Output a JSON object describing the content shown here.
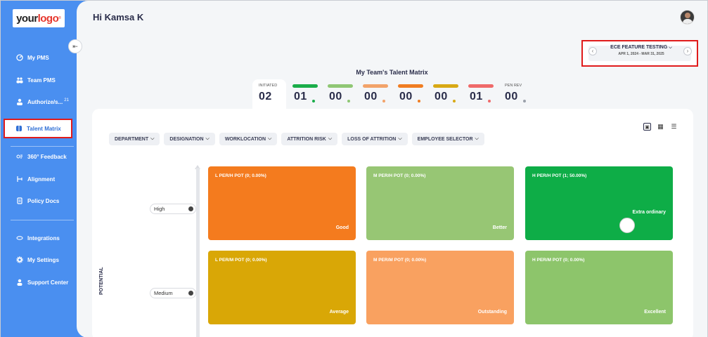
{
  "brand": {
    "logo_text_1": "your",
    "logo_text_2": "logo",
    "logo_mark": "®"
  },
  "sidebar": {
    "items": [
      {
        "label": "My PMS",
        "icon": "gauge-icon"
      },
      {
        "label": "Team PMS",
        "icon": "team-icon"
      },
      {
        "label": "Authorize/s...",
        "badge": "21",
        "icon": "user-check-icon"
      },
      {
        "label": "Talent Matrix",
        "icon": "matrix-icon",
        "active": true
      },
      {
        "label": "360° Feedback",
        "icon": "feedback-icon"
      },
      {
        "label": "Alignment",
        "icon": "alignment-icon"
      },
      {
        "label": "Policy Docs",
        "icon": "document-icon"
      },
      {
        "label": "Integrations",
        "icon": "link-icon"
      },
      {
        "label": "My Settings",
        "icon": "gear-icon"
      },
      {
        "label": "Support Center",
        "icon": "support-icon"
      }
    ]
  },
  "header": {
    "greeting": "Hi Kamsa K"
  },
  "cycle": {
    "name": "ECE FEATURE TESTING",
    "range": "APR 1, 2024 - MAR 31, 2025"
  },
  "matrix": {
    "title": "My Team's Talent Matrix",
    "stages": [
      {
        "label": "INITIATED",
        "count": "02",
        "color": "",
        "selected": true
      },
      {
        "label": "",
        "count": "01",
        "color": "#1aad4a"
      },
      {
        "label": "",
        "count": "00",
        "color": "#8fc774"
      },
      {
        "label": "",
        "count": "00",
        "color": "#f2a36a"
      },
      {
        "label": "",
        "count": "00",
        "color": "#f07d22"
      },
      {
        "label": "",
        "count": "00",
        "color": "#d8a915"
      },
      {
        "label": "",
        "count": "01",
        "color": "#ef6a6a"
      },
      {
        "label": "PEN REV",
        "count": "00",
        "color": "#9aa0aa"
      }
    ],
    "filters": [
      "DEPARTMENT",
      "DESIGNATION",
      "WORKLOCATION",
      "ATTRITION RISK",
      "LOSS OF ATTRITION",
      "EMPLOYEE SELECTOR"
    ],
    "axis_label": "POTENTIAL",
    "levels": [
      "High",
      "Medium"
    ],
    "boxes": [
      {
        "title": "L PER/H POT (0; 0.00%)",
        "label": "Good",
        "color": "#f47b1e"
      },
      {
        "title": "M PER/H POT (0; 0.00%)",
        "label": "Better",
        "color": "#97c674"
      },
      {
        "title": "H PER/H POT (1; 50.00%)",
        "label": "Extra ordinary",
        "color": "#0ead47"
      },
      {
        "title": "L PER/M POT (0; 0.00%)",
        "label": "Average",
        "color": "#d9a706"
      },
      {
        "title": "M PER/M POT (0; 0.00%)",
        "label": "Outstanding",
        "color": "#f9a160"
      },
      {
        "title": "H PER/M POT (0; 0.00%)",
        "label": "Excellent",
        "color": "#8dc56b"
      }
    ]
  }
}
